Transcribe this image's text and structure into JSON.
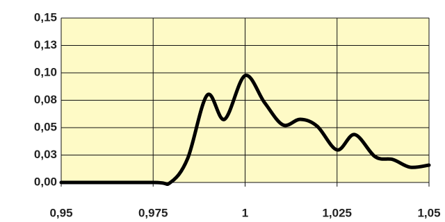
{
  "chart_data": {
    "type": "line",
    "x": [
      0.95,
      0.975,
      0.9797,
      0.9844,
      0.9897,
      0.9944,
      1.0,
      1.0053,
      1.0103,
      1.015,
      1.0196,
      1.025,
      1.0298,
      1.0354,
      1.0402,
      1.0449,
      1.05
    ],
    "series": [
      {
        "color": "#000000",
        "values": [
          0,
          0,
          0,
          0.022,
          0.0797,
          0.0576,
          0.0975,
          0.0728,
          0.0525,
          0.0576,
          0.0513,
          0.0297,
          0.0437,
          0.0234,
          0.0209,
          0.0139,
          0.0158
        ]
      }
    ],
    "xlim": [
      0.95,
      1.05
    ],
    "xticks": [
      {
        "value": 0.95,
        "label": "0,95"
      },
      {
        "value": 0.975,
        "label": "0,975"
      },
      1,
      {
        "value": 1.025,
        "label": "1,025"
      },
      {
        "value": 1.05,
        "label": "1,05"
      }
    ],
    "ylim": [
      0,
      0.15
    ],
    "yticks": [
      {
        "value": 0,
        "label": "0,00"
      },
      {
        "value": 0.025,
        "label": "0,03"
      },
      {
        "value": 0.05,
        "label": "0,05"
      },
      {
        "value": 0.075,
        "label": "0,08"
      },
      {
        "value": 0.1,
        "label": "0,10"
      },
      {
        "value": 0.125,
        "label": "0,13"
      },
      {
        "value": 0.15,
        "label": "0,15"
      }
    ],
    "grid": true,
    "plot_background": "#fefac6"
  }
}
